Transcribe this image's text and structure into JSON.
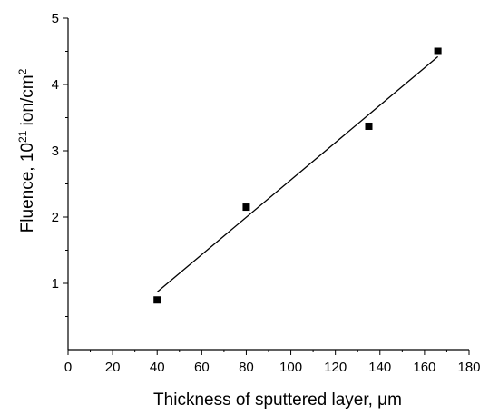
{
  "chart_data": {
    "type": "scatter",
    "xlabel": "Thickness of sputtered layer, μm",
    "ylabel": "Fluence, 10",
    "ylabel_sup1": "21",
    "ylabel_mid": " ion/cm",
    "ylabel_sup2": "2",
    "xlim": [
      0,
      180
    ],
    "ylim": [
      0,
      5
    ],
    "xticks": [
      0,
      20,
      40,
      60,
      80,
      100,
      120,
      140,
      160,
      180
    ],
    "yticks": [
      1,
      2,
      3,
      4,
      5
    ],
    "grid": false,
    "series": [
      {
        "points": [
          [
            40,
            0.75
          ],
          [
            80,
            2.15
          ],
          [
            135,
            3.37
          ],
          [
            166,
            4.5
          ]
        ],
        "marker": "square",
        "color": "#000000"
      }
    ],
    "fit_line": {
      "x": [
        40,
        166
      ],
      "y": [
        0.87,
        4.42
      ],
      "color": "#000000"
    }
  }
}
